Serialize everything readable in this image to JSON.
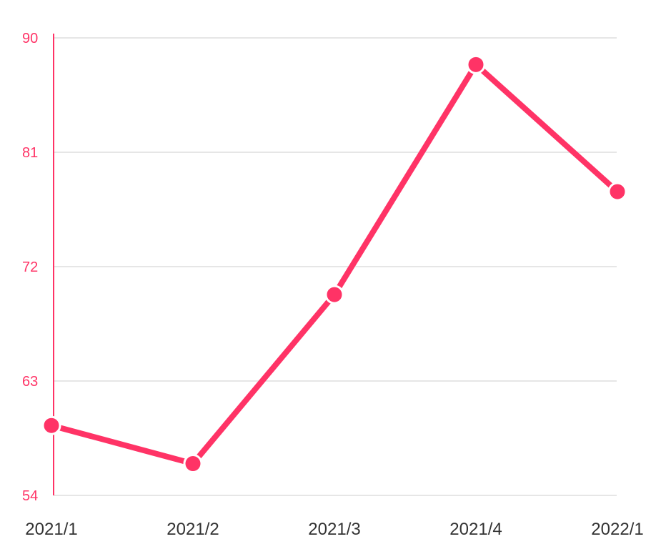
{
  "chart_data": {
    "type": "line",
    "categories": [
      "2021/1",
      "2021/2",
      "2021/3",
      "2021/4",
      "2022/1"
    ],
    "series": [
      {
        "values": [
          59.5,
          56.5,
          69.8,
          87.9,
          77.9
        ],
        "color": "#ff3366"
      }
    ],
    "y_ticks": [
      90,
      81,
      72,
      63,
      54
    ],
    "ylim": [
      54,
      90
    ],
    "grid": true,
    "legend": "none",
    "axis_color": "#ff3366",
    "grid_color": "#e6e6e6",
    "x_label_color": "#333333"
  }
}
